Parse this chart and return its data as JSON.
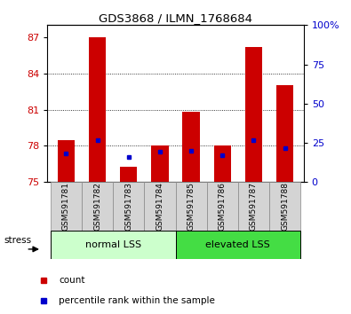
{
  "title": "GDS3868 / ILMN_1768684",
  "samples": [
    "GSM591781",
    "GSM591782",
    "GSM591783",
    "GSM591784",
    "GSM591785",
    "GSM591786",
    "GSM591787",
    "GSM591788"
  ],
  "bar_tops": [
    78.5,
    87.0,
    76.3,
    78.0,
    80.8,
    78.0,
    86.2,
    83.0
  ],
  "bar_base": 75.0,
  "blue_dot_y": [
    77.35,
    78.5,
    77.1,
    77.5,
    77.6,
    77.25,
    78.5,
    77.8
  ],
  "ylim_left": [
    75,
    88
  ],
  "ylim_right": [
    0,
    100
  ],
  "yticks_left": [
    75,
    78,
    81,
    84,
    87
  ],
  "yticks_right": [
    0,
    25,
    50,
    75,
    100
  ],
  "bar_color": "#cc0000",
  "dot_color": "#0000cc",
  "group1_label": "normal LSS",
  "group2_label": "elevated LSS",
  "group1_color": "#ccffcc",
  "group2_color": "#44dd44",
  "group1_indices": [
    0,
    1,
    2,
    3
  ],
  "group2_indices": [
    4,
    5,
    6,
    7
  ],
  "stress_label": "stress",
  "legend_count": "count",
  "legend_pct": "percentile rank within the sample",
  "tick_color_left": "#cc0000",
  "tick_color_right": "#0000cc",
  "label_bg": "#d4d4d4",
  "fig_width": 3.95,
  "fig_height": 3.54
}
